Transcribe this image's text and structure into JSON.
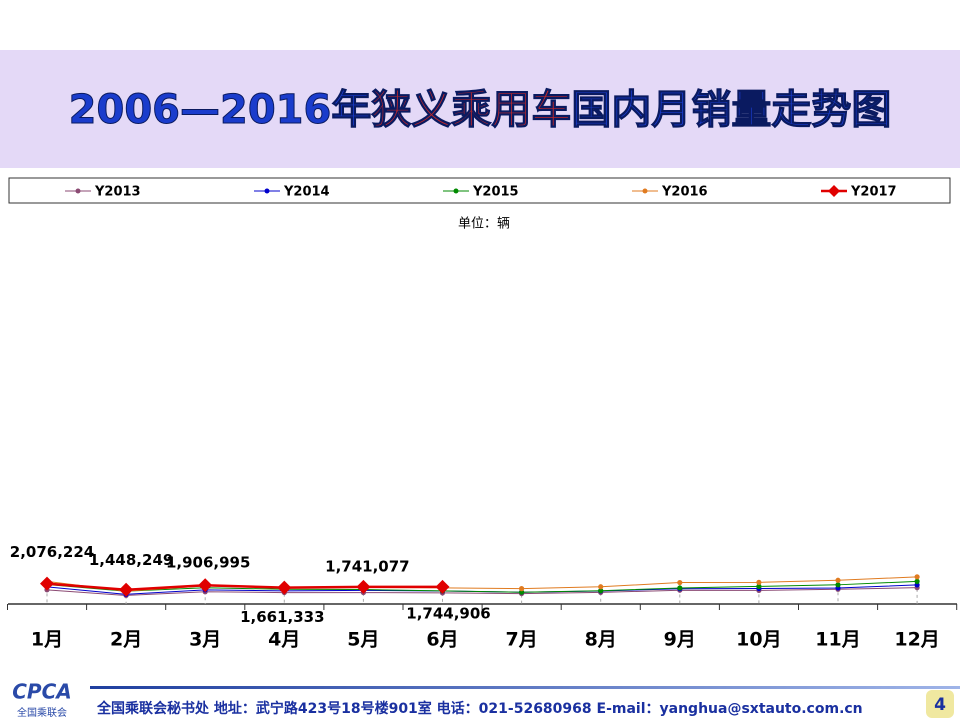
{
  "chart_data": {
    "type": "line",
    "title": [
      "2006—2016年",
      "狭义乘用车",
      "国内月销量走势图"
    ],
    "subtitle": "单位：辆",
    "categories": [
      "1月",
      "2月",
      "3月",
      "4月",
      "5月",
      "6月",
      "7月",
      "8月",
      "9月",
      "10月",
      "11月",
      "12月"
    ],
    "ylim": [
      0,
      4000000
    ],
    "legend": "top",
    "series": [
      {
        "name": "Y2013",
        "color": "#8b4a73",
        "marker": "circle",
        "values": [
          1440000,
          870000,
          1240000,
          1160000,
          1160000,
          1130000,
          1060000,
          1180000,
          1400000,
          1380000,
          1500000,
          1660000
        ]
      },
      {
        "name": "Y2014",
        "color": "#0000cc",
        "marker": "circle",
        "values": [
          1740000,
          980000,
          1430000,
          1340000,
          1390000,
          1320000,
          1200000,
          1320000,
          1550000,
          1570000,
          1630000,
          1940000
        ]
      },
      {
        "name": "Y2015",
        "color": "#008a00",
        "marker": "circle",
        "values": [
          1980000,
          1300000,
          1650000,
          1500000,
          1470000,
          1340000,
          1200000,
          1350000,
          1630000,
          1790000,
          1950000,
          2300000
        ]
      },
      {
        "name": "Y2016",
        "color": "#e07b20",
        "marker": "circle",
        "values": [
          2300000,
          1300000,
          1840000,
          1620000,
          1690000,
          1640000,
          1560000,
          1750000,
          2180000,
          2200000,
          2410000,
          2760000
        ]
      },
      {
        "name": "Y2017",
        "color": "#e00000",
        "marker": "diamond",
        "values": [
          2076224,
          1448249,
          1906995,
          1661333,
          1741077,
          1744906,
          null,
          null,
          null,
          null,
          null,
          null
        ],
        "value_labels": [
          "2,076,224",
          "1,448,249",
          "1,906,995",
          "1,661,333",
          "1,741,077",
          "1,744,906",
          null,
          null,
          null,
          null,
          null,
          null
        ]
      }
    ]
  },
  "footer": {
    "logo": "CPCA",
    "logo_sub": "全国乘联会",
    "text": "全国乘联会秘书处  地址：武宁路423号18号楼901室    电话：021-52680968   E-mail：yanghua@sxtauto.com.cn",
    "page": "4"
  }
}
